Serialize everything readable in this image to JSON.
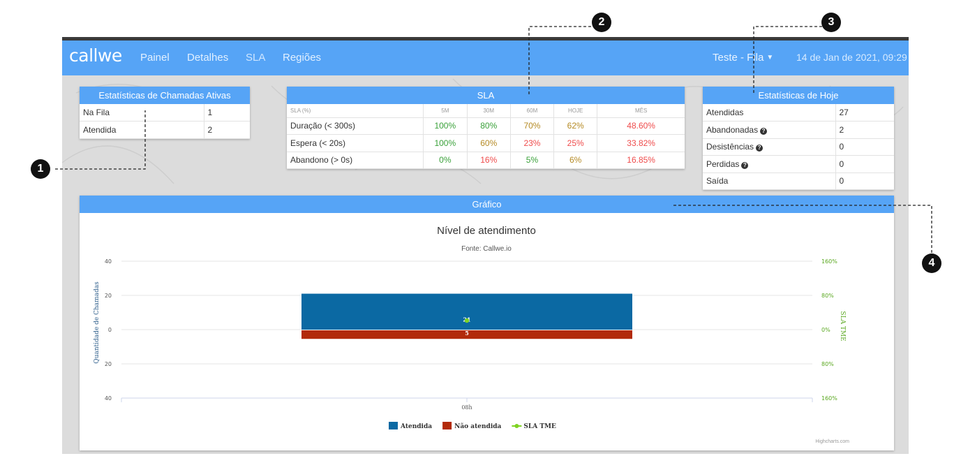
{
  "app": {
    "logo": "callwe",
    "nav": [
      "Painel",
      "Detalhes",
      "SLA",
      "Regiões"
    ],
    "queue": "Teste - Fila",
    "datetime": "14 de Jan de 2021, 09:29"
  },
  "active_calls": {
    "title": "Estatísticas de Chamadas Ativas",
    "rows": [
      {
        "label": "Na Fila",
        "value": "1"
      },
      {
        "label": "Atendida",
        "value": "2"
      }
    ]
  },
  "sla": {
    "title": "SLA",
    "headers": [
      "SLA (%)",
      "5M",
      "30M",
      "60M",
      "HOJE",
      "MÊS"
    ],
    "rows": [
      {
        "label": "Duração (< 300s)",
        "values": [
          "100%",
          "80%",
          "70%",
          "62%",
          "48.60%"
        ]
      },
      {
        "label": "Espera (< 20s)",
        "values": [
          "100%",
          "60%",
          "23%",
          "25%",
          "33.82%"
        ]
      },
      {
        "label": "Abandono (> 0s)",
        "values": [
          "0%",
          "16%",
          "5%",
          "6%",
          "16.85%"
        ]
      }
    ]
  },
  "today": {
    "title": "Estatísticas de Hoje",
    "rows": [
      {
        "label": "Atendidas",
        "value": "27"
      },
      {
        "label": "Abandonadas",
        "value": "2"
      },
      {
        "label": "Desistências",
        "value": "0"
      },
      {
        "label": "Perdidas",
        "value": "0"
      },
      {
        "label": "Saída",
        "value": "0"
      }
    ]
  },
  "chart_panel": {
    "title": "Gráfico"
  },
  "chart_data": {
    "type": "bar",
    "title": "Nível de atendimento",
    "subtitle": "Fonte: Callwe.io",
    "categories": [
      "08h"
    ],
    "ylabel": "Quantidade de Chamadas",
    "y2label": "SLA TME",
    "ylim": [
      -40,
      40
    ],
    "y_ticks": [
      "40",
      "20",
      "0",
      "20",
      "40"
    ],
    "y2_ticks": [
      "160%",
      "80%",
      "0%",
      "80%",
      "160%"
    ],
    "series": [
      {
        "name": "Atendida",
        "values": [
          21
        ],
        "color": "#0b69a3"
      },
      {
        "name": "Não atendida",
        "values": [
          -5
        ],
        "label": "5",
        "color": "#b22a0a"
      },
      {
        "name": "SLA TME",
        "values": [
          0
        ],
        "color": "#7ed321",
        "type": "line"
      }
    ],
    "credits": "Highcharts.com"
  },
  "annotations": [
    "1",
    "2",
    "3",
    "4"
  ]
}
